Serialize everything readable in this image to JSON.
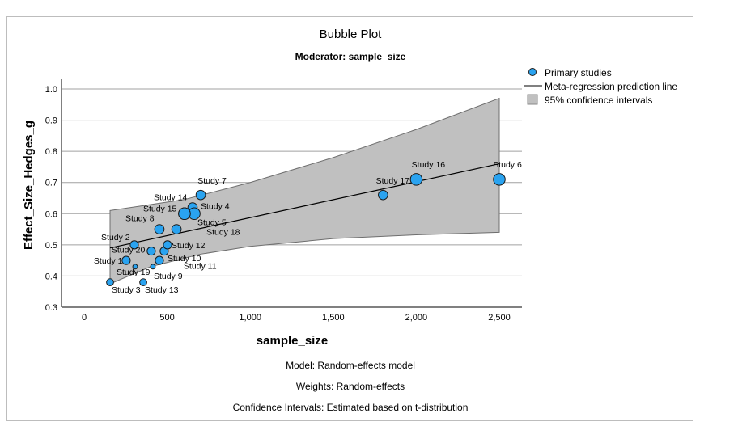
{
  "chart_data": {
    "type": "scatter",
    "title": "Bubble Plot",
    "subtitle": "Moderator: sample_size",
    "xlabel": "sample_size",
    "ylabel": "Effect_Size_Hedges_g",
    "xlim": [
      -150,
      2650
    ],
    "ylim": [
      0.3,
      1.05
    ],
    "x_ticks": [
      0,
      500,
      1000,
      1500,
      2000,
      2500
    ],
    "x_tick_labels": [
      "0",
      "500",
      "1,000",
      "1,500",
      "2,000",
      "2,500"
    ],
    "y_ticks": [
      0.3,
      0.4,
      0.5,
      0.6,
      0.7,
      0.8,
      0.9,
      1.0
    ],
    "y_tick_labels": [
      "0.3",
      "0.4",
      "0.5",
      "0.6",
      "0.7",
      "0.8",
      "0.9",
      "1.0"
    ],
    "grid": "horizontal",
    "legend_position": "top-right",
    "legend": [
      {
        "label": "Primary studies",
        "kind": "marker"
      },
      {
        "label": "Meta-regression prediction line",
        "kind": "line"
      },
      {
        "label": "95% confidence intervals",
        "kind": "patch"
      }
    ],
    "colors": {
      "bubble": "#2aa3f0",
      "bubble_edge": "#1a1a1a",
      "ci_band": "#c0c0c0",
      "line": "#000000",
      "grid": "#a0a0a0"
    },
    "points": [
      {
        "label": "Study 1",
        "x": 253,
        "y": 0.45,
        "weight": 5
      },
      {
        "label": "Study 2",
        "x": 302,
        "y": 0.5,
        "weight": 5
      },
      {
        "label": "Study 3",
        "x": 156,
        "y": 0.38,
        "weight": 4
      },
      {
        "label": "Study 4",
        "x": 653,
        "y": 0.62,
        "weight": 6
      },
      {
        "label": "Study 5",
        "x": 663,
        "y": 0.6,
        "weight": 8
      },
      {
        "label": "Study 6",
        "x": 2500,
        "y": 0.71,
        "weight": 8
      },
      {
        "label": "Study 7",
        "x": 702,
        "y": 0.66,
        "weight": 6
      },
      {
        "label": "Study 8",
        "x": 453,
        "y": 0.55,
        "weight": 6
      },
      {
        "label": "Study 9",
        "x": 414,
        "y": 0.43,
        "weight": 2
      },
      {
        "label": "Study 10",
        "x": 453,
        "y": 0.45,
        "weight": 5
      },
      {
        "label": "Study 11",
        "x": 482,
        "y": 0.48,
        "weight": 5
      },
      {
        "label": "Study 12",
        "x": 502,
        "y": 0.5,
        "weight": 5
      },
      {
        "label": "Study 13",
        "x": 356,
        "y": 0.38,
        "weight": 4
      },
      {
        "label": "Study 14",
        "x": 604,
        "y": 0.6,
        "weight": 8
      },
      {
        "label": "Study 15",
        "x": 604,
        "y": 0.6,
        "weight": 8
      },
      {
        "label": "Study 16",
        "x": 2000,
        "y": 0.71,
        "weight": 8
      },
      {
        "label": "Study 17",
        "x": 1800,
        "y": 0.66,
        "weight": 6
      },
      {
        "label": "Study 18",
        "x": 556,
        "y": 0.55,
        "weight": 6
      },
      {
        "label": "Study 19",
        "x": 307,
        "y": 0.43,
        "weight": 2
      },
      {
        "label": "Study 20",
        "x": 404,
        "y": 0.48,
        "weight": 5
      }
    ],
    "regression_line": {
      "x": [
        156,
        2500
      ],
      "y": [
        0.49,
        0.76
      ]
    },
    "ci_upper": {
      "x": [
        156,
        600,
        1000,
        1500,
        2000,
        2500
      ],
      "y": [
        0.61,
        0.645,
        0.7,
        0.78,
        0.87,
        0.97
      ]
    },
    "ci_lower": {
      "x": [
        156,
        400,
        700,
        1000,
        1500,
        2000,
        2500
      ],
      "y": [
        0.375,
        0.43,
        0.47,
        0.495,
        0.52,
        0.532,
        0.54
      ]
    },
    "footnotes": [
      "Model: Random-effects model",
      "Weights: Random-effects",
      "Confidence Intervals: Estimated based on t-distribution"
    ]
  }
}
